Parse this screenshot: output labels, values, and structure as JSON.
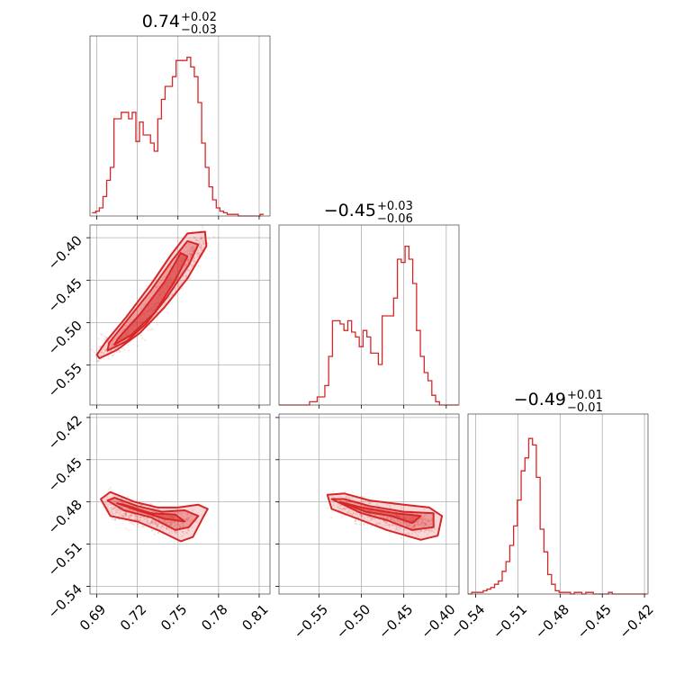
{
  "chart_data": {
    "type": "corner",
    "color": "#d62728",
    "grid": true,
    "parameters": [
      {
        "median": "0.74",
        "plus": "+0.02",
        "minus": "−0.03",
        "range": [
          0.685,
          0.818
        ],
        "ticks": [
          0.69,
          0.72,
          0.75,
          0.78,
          0.81
        ],
        "tick_labels": [
          "0.69",
          "0.72",
          "0.75",
          "0.78",
          "0.81"
        ]
      },
      {
        "median": "−0.45",
        "plus": "+0.03",
        "minus": "−0.06",
        "range": [
          -0.597,
          -0.385
        ],
        "ticks": [
          -0.55,
          -0.5,
          -0.45,
          -0.4
        ],
        "tick_labels": [
          "−0.55",
          "−0.50",
          "−0.45",
          "−0.40"
        ]
      },
      {
        "median": "−0.49",
        "plus": "+0.01",
        "minus": "−0.01",
        "range": [
          -0.5455,
          -0.4175
        ],
        "ticks": [
          -0.54,
          -0.51,
          -0.48,
          -0.45,
          -0.42
        ],
        "tick_labels": [
          "−0.54",
          "−0.51",
          "−0.48",
          "−0.45",
          "−0.42"
        ]
      }
    ],
    "histograms": [
      {
        "bin_width": 0.0027,
        "start": 0.6865,
        "counts": [
          0.02,
          0.03,
          0.05,
          0.12,
          0.22,
          0.3,
          0.6,
          0.6,
          0.64,
          0.64,
          0.6,
          0.64,
          0.46,
          0.58,
          0.5,
          0.5,
          0.45,
          0.4,
          0.6,
          0.72,
          0.8,
          0.8,
          0.86,
          0.96,
          0.96,
          0.96,
          0.98,
          0.92,
          0.86,
          0.7,
          0.45,
          0.3,
          0.18,
          0.1,
          0.05,
          0.03,
          0.02,
          0.01,
          0.01,
          0.01,
          0.0,
          0.0,
          0.0,
          0.0,
          0.0,
          0.0,
          0.01
        ]
      },
      {
        "bin_width": 0.0045,
        "start": -0.597,
        "counts": [
          0.0,
          0.0,
          0.0,
          0.0,
          0.0,
          0.0,
          0.0,
          0.0,
          0.02,
          0.02,
          0.05,
          0.05,
          0.12,
          0.3,
          0.52,
          0.52,
          0.5,
          0.46,
          0.52,
          0.45,
          0.42,
          0.36,
          0.46,
          0.42,
          0.32,
          0.32,
          0.25,
          0.55,
          0.55,
          0.55,
          0.66,
          0.9,
          0.88,
          0.98,
          0.9,
          0.75,
          0.46,
          0.3,
          0.2,
          0.15,
          0.06,
          0.02,
          0.0,
          0.0,
          0.0,
          0.0,
          0.0
        ]
      },
      {
        "bin_width": 0.0027,
        "start": -0.5455,
        "counts": [
          0.0,
          0.01,
          0.01,
          0.01,
          0.02,
          0.03,
          0.04,
          0.06,
          0.08,
          0.14,
          0.2,
          0.3,
          0.42,
          0.58,
          0.76,
          0.84,
          0.96,
          0.92,
          0.72,
          0.4,
          0.26,
          0.12,
          0.06,
          0.02,
          0.01,
          0.01,
          0.01,
          0.0,
          0.01,
          0.01,
          0.0,
          0.01,
          0.01,
          0.0,
          0.0,
          0.0,
          0.0,
          0.01,
          0.0,
          0.0,
          0.0,
          0.0,
          0.0,
          0.0,
          0.0,
          0.0,
          0.0
        ]
      }
    ],
    "scatter_2d": [
      {
        "x_param": 0,
        "y_param": 1,
        "trend": [
          [
            0.693,
            -0.535
          ],
          [
            0.705,
            -0.523
          ],
          [
            0.72,
            -0.503
          ],
          [
            0.735,
            -0.475
          ],
          [
            0.75,
            -0.445
          ],
          [
            0.762,
            -0.418
          ],
          [
            0.768,
            -0.405
          ]
        ],
        "contours": [
          [
            [
              0.692,
              -0.542
            ],
            [
              0.705,
              -0.532
            ],
            [
              0.722,
              -0.512
            ],
            [
              0.74,
              -0.482
            ],
            [
              0.757,
              -0.448
            ],
            [
              0.771,
              -0.41
            ],
            [
              0.77,
              -0.393
            ],
            [
              0.757,
              -0.395
            ],
            [
              0.745,
              -0.42
            ],
            [
              0.73,
              -0.455
            ],
            [
              0.712,
              -0.493
            ],
            [
              0.697,
              -0.522
            ],
            [
              0.69,
              -0.538
            ]
          ],
          [
            [
              0.698,
              -0.533
            ],
            [
              0.712,
              -0.522
            ],
            [
              0.726,
              -0.502
            ],
            [
              0.742,
              -0.47
            ],
            [
              0.758,
              -0.432
            ],
            [
              0.765,
              -0.408
            ],
            [
              0.757,
              -0.404
            ],
            [
              0.746,
              -0.426
            ],
            [
              0.73,
              -0.462
            ],
            [
              0.713,
              -0.496
            ],
            [
              0.699,
              -0.524
            ]
          ],
          [
            [
              0.703,
              -0.526
            ],
            [
              0.716,
              -0.514
            ],
            [
              0.733,
              -0.488
            ],
            [
              0.748,
              -0.45
            ],
            [
              0.757,
              -0.422
            ],
            [
              0.752,
              -0.418
            ],
            [
              0.74,
              -0.452
            ],
            [
              0.722,
              -0.49
            ],
            [
              0.706,
              -0.518
            ]
          ]
        ]
      },
      {
        "x_param": 0,
        "y_param": 2,
        "trend": [
          [
            0.698,
            -0.482
          ],
          [
            0.715,
            -0.487
          ],
          [
            0.73,
            -0.491
          ],
          [
            0.745,
            -0.495
          ],
          [
            0.76,
            -0.493
          ]
        ],
        "contours": [
          [
            [
              0.693,
              -0.478
            ],
            [
              0.7,
              -0.49
            ],
            [
              0.72,
              -0.494
            ],
            [
              0.735,
              -0.5
            ],
            [
              0.752,
              -0.508
            ],
            [
              0.761,
              -0.505
            ],
            [
              0.768,
              -0.492
            ],
            [
              0.772,
              -0.485
            ],
            [
              0.765,
              -0.482
            ],
            [
              0.75,
              -0.484
            ],
            [
              0.735,
              -0.484
            ],
            [
              0.718,
              -0.48
            ],
            [
              0.7,
              -0.473
            ]
          ],
          [
            [
              0.698,
              -0.479
            ],
            [
              0.71,
              -0.486
            ],
            [
              0.73,
              -0.491
            ],
            [
              0.748,
              -0.5
            ],
            [
              0.758,
              -0.498
            ],
            [
              0.765,
              -0.49
            ],
            [
              0.755,
              -0.486
            ],
            [
              0.738,
              -0.487
            ],
            [
              0.72,
              -0.483
            ],
            [
              0.703,
              -0.477
            ]
          ],
          [
            [
              0.705,
              -0.481
            ],
            [
              0.72,
              -0.486
            ],
            [
              0.74,
              -0.492
            ],
            [
              0.755,
              -0.494
            ],
            [
              0.748,
              -0.489
            ],
            [
              0.73,
              -0.488
            ],
            [
              0.71,
              -0.482
            ]
          ]
        ]
      },
      {
        "x_param": 1,
        "y_param": 2,
        "trend": [
          [
            -0.53,
            -0.48
          ],
          [
            -0.5,
            -0.488
          ],
          [
            -0.47,
            -0.492
          ],
          [
            -0.44,
            -0.495
          ],
          [
            -0.42,
            -0.496
          ]
        ],
        "contours": [
          [
            [
              -0.54,
              -0.475
            ],
            [
              -0.535,
              -0.485
            ],
            [
              -0.5,
              -0.493
            ],
            [
              -0.47,
              -0.5
            ],
            [
              -0.43,
              -0.507
            ],
            [
              -0.41,
              -0.504
            ],
            [
              -0.405,
              -0.49
            ],
            [
              -0.42,
              -0.484
            ],
            [
              -0.45,
              -0.482
            ],
            [
              -0.49,
              -0.479
            ],
            [
              -0.52,
              -0.474
            ]
          ],
          [
            [
              -0.535,
              -0.478
            ],
            [
              -0.5,
              -0.488
            ],
            [
              -0.47,
              -0.493
            ],
            [
              -0.44,
              -0.5
            ],
            [
              -0.415,
              -0.498
            ],
            [
              -0.415,
              -0.488
            ],
            [
              -0.45,
              -0.487
            ],
            [
              -0.49,
              -0.483
            ],
            [
              -0.52,
              -0.478
            ]
          ],
          [
            [
              -0.525,
              -0.48
            ],
            [
              -0.495,
              -0.487
            ],
            [
              -0.465,
              -0.49
            ],
            [
              -0.44,
              -0.495
            ],
            [
              -0.43,
              -0.49
            ],
            [
              -0.46,
              -0.488
            ],
            [
              -0.5,
              -0.484
            ]
          ]
        ]
      }
    ]
  }
}
